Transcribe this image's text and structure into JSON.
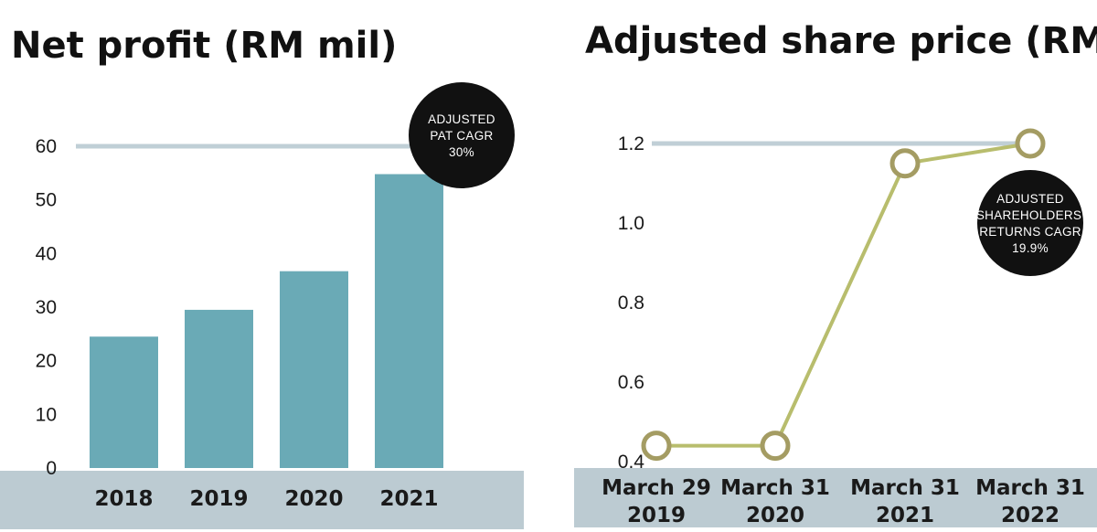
{
  "chart_data": [
    {
      "type": "bar",
      "title": "Net profit (RM mil)",
      "categories": [
        "2018",
        "2019",
        "2020",
        "2021"
      ],
      "values": [
        24.5,
        29.5,
        36.7,
        54.8
      ],
      "yticks": [
        0,
        10,
        20,
        30,
        40,
        50,
        60
      ],
      "ylim": [
        0,
        60
      ],
      "reference_line": 60,
      "annotation": [
        "ADJUSTED",
        "PAT CAGR",
        "30%"
      ],
      "colors": {
        "bar": "#6aaab6",
        "reference": "#c0cfd6",
        "axis_band": "#bccbd2",
        "badge": "#111111"
      }
    },
    {
      "type": "line",
      "title": "Adjusted share price (RM)",
      "categories": [
        "March 29 2019",
        "March 31 2020",
        "March 31 2021",
        "March 31 2022"
      ],
      "category_lines": [
        [
          "March 29",
          "2019"
        ],
        [
          "March 31",
          "2020"
        ],
        [
          "March 31",
          "2021"
        ],
        [
          "March 31",
          "2022"
        ]
      ],
      "values": [
        0.44,
        0.44,
        1.15,
        1.2
      ],
      "yticks": [
        "0.4",
        "0.6",
        "0.8",
        "1.0",
        "1.2"
      ],
      "ylim": [
        0.4,
        1.2
      ],
      "reference_line": 1.2,
      "annotation": [
        "ADJUSTED",
        "SHAREHOLDERS'",
        "RETURNS CAGR",
        "19.9%"
      ],
      "colors": {
        "line": "#b8bd6d",
        "marker_stroke": "#a49c63",
        "reference": "#c0cfd6",
        "axis_band": "#bccbd2",
        "badge": "#111111"
      }
    }
  ]
}
